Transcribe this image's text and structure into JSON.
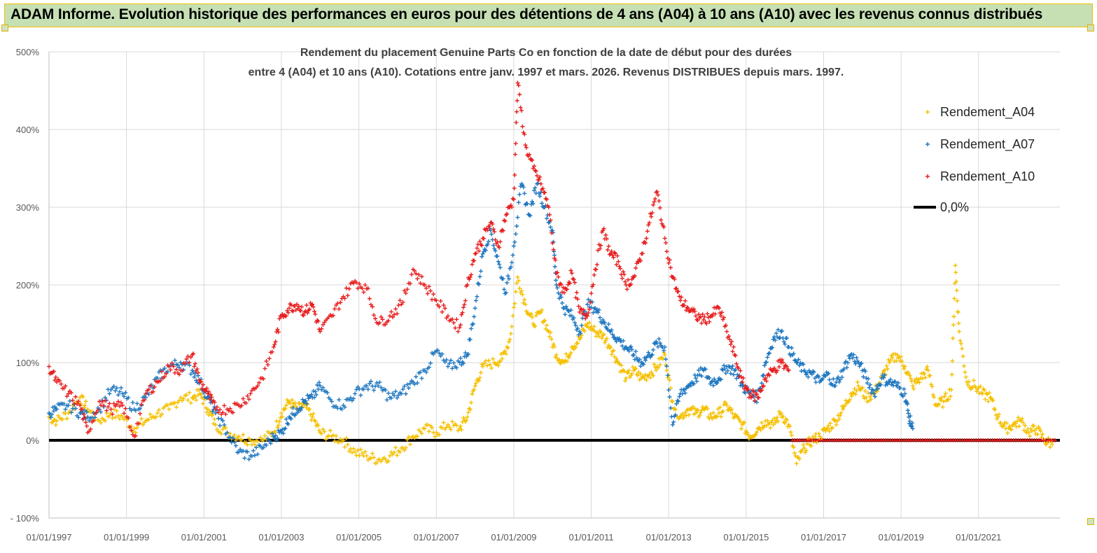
{
  "banner": {
    "title": "ADAM Informe. Evolution historique des performances en euros pour des détentions de 4 ans (A04) à 10 ans (A10) avec les revenus connus distribués"
  },
  "chart_data": {
    "type": "scatter",
    "title_line1": "Rendement du placement Genuine Parts Co en fonction de la date de début pour des durées",
    "title_line2": "entre 4 (A04) et 10 ans (A10). Cotations entre janv. 1997 et mars. 2026. Revenus DISTRIBUES depuis mars. 1997.",
    "y_ticks": [
      "500%",
      "400%",
      "300%",
      "200%",
      "100%",
      "0%",
      "- 100%"
    ],
    "x_ticks": [
      "01/01/1997",
      "01/01/1999",
      "01/01/2001",
      "01/01/2003",
      "01/01/2005",
      "01/01/2007",
      "01/01/2009",
      "01/01/2011",
      "01/01/2013",
      "01/01/2015",
      "01/01/2017",
      "01/01/2019",
      "01/01/2021"
    ],
    "ylim": [
      -100,
      500
    ],
    "xlim": [
      1997.0,
      2023.1
    ],
    "grid": true,
    "legend_position": "top-right",
    "reference_line": {
      "name": "0,0%",
      "value": 0,
      "color": "#000000"
    },
    "series": [
      {
        "name": "Rendement_A04",
        "color": "#f5c000",
        "points": [
          [
            1997.0,
            30
          ],
          [
            1997.2,
            25
          ],
          [
            1997.5,
            35
          ],
          [
            1997.8,
            55
          ],
          [
            1998.0,
            40
          ],
          [
            1998.3,
            25
          ],
          [
            1998.6,
            35
          ],
          [
            1998.9,
            30
          ],
          [
            1999.2,
            15
          ],
          [
            1999.5,
            25
          ],
          [
            1999.8,
            35
          ],
          [
            2000.1,
            40
          ],
          [
            2000.4,
            55
          ],
          [
            2000.7,
            55
          ],
          [
            2000.9,
            60
          ],
          [
            2001.1,
            40
          ],
          [
            2001.3,
            20
          ],
          [
            2001.6,
            10
          ],
          [
            2001.9,
            5
          ],
          [
            2002.2,
            0
          ],
          [
            2002.5,
            0
          ],
          [
            2002.8,
            10
          ],
          [
            2003.0,
            35
          ],
          [
            2003.2,
            50
          ],
          [
            2003.4,
            40
          ],
          [
            2003.6,
            45
          ],
          [
            2003.8,
            30
          ],
          [
            2004.0,
            10
          ],
          [
            2004.3,
            5
          ],
          [
            2004.6,
            0
          ],
          [
            2004.9,
            -15
          ],
          [
            2005.2,
            -20
          ],
          [
            2005.5,
            -25
          ],
          [
            2005.8,
            -20
          ],
          [
            2006.1,
            -10
          ],
          [
            2006.4,
            5
          ],
          [
            2006.7,
            15
          ],
          [
            2007.0,
            10
          ],
          [
            2007.3,
            20
          ],
          [
            2007.6,
            15
          ],
          [
            2007.8,
            30
          ],
          [
            2008.0,
            70
          ],
          [
            2008.2,
            95
          ],
          [
            2008.5,
            100
          ],
          [
            2008.7,
            105
          ],
          [
            2008.9,
            130
          ],
          [
            2009.1,
            210
          ],
          [
            2009.3,
            175
          ],
          [
            2009.5,
            150
          ],
          [
            2009.7,
            165
          ],
          [
            2009.9,
            140
          ],
          [
            2010.1,
            110
          ],
          [
            2010.3,
            100
          ],
          [
            2010.5,
            120
          ],
          [
            2010.7,
            130
          ],
          [
            2010.9,
            150
          ],
          [
            2011.1,
            140
          ],
          [
            2011.3,
            135
          ],
          [
            2011.5,
            120
          ],
          [
            2011.7,
            100
          ],
          [
            2011.9,
            80
          ],
          [
            2012.1,
            90
          ],
          [
            2012.3,
            80
          ],
          [
            2012.5,
            85
          ],
          [
            2012.7,
            95
          ],
          [
            2012.9,
            110
          ],
          [
            2013.1,
            50
          ],
          [
            2013.3,
            30
          ],
          [
            2013.5,
            40
          ],
          [
            2013.7,
            35
          ],
          [
            2013.9,
            40
          ],
          [
            2014.1,
            30
          ],
          [
            2014.3,
            35
          ],
          [
            2014.5,
            45
          ],
          [
            2014.7,
            30
          ],
          [
            2014.9,
            20
          ],
          [
            2015.1,
            5
          ],
          [
            2015.3,
            15
          ],
          [
            2015.5,
            25
          ],
          [
            2015.7,
            20
          ],
          [
            2015.9,
            35
          ],
          [
            2016.1,
            20
          ],
          [
            2016.3,
            -30
          ],
          [
            2016.5,
            -10
          ],
          [
            2016.7,
            0
          ],
          [
            2016.9,
            5
          ],
          [
            2017.1,
            15
          ],
          [
            2017.3,
            25
          ],
          [
            2017.5,
            40
          ],
          [
            2017.7,
            60
          ],
          [
            2017.9,
            70
          ],
          [
            2018.1,
            55
          ],
          [
            2018.3,
            60
          ],
          [
            2018.5,
            80
          ],
          [
            2018.7,
            100
          ],
          [
            2018.9,
            110
          ],
          [
            2019.1,
            95
          ],
          [
            2019.3,
            70
          ],
          [
            2019.5,
            80
          ],
          [
            2019.7,
            90
          ],
          [
            2019.9,
            45
          ],
          [
            2020.1,
            50
          ],
          [
            2020.3,
            65
          ],
          [
            2020.4,
            225
          ],
          [
            2020.5,
            140
          ],
          [
            2020.7,
            75
          ],
          [
            2020.9,
            70
          ],
          [
            2021.1,
            60
          ],
          [
            2021.3,
            55
          ],
          [
            2021.5,
            30
          ],
          [
            2021.7,
            15
          ],
          [
            2021.9,
            20
          ],
          [
            2022.1,
            25
          ],
          [
            2022.3,
            10
          ],
          [
            2022.5,
            15
          ],
          [
            2022.7,
            0
          ],
          [
            2022.9,
            -5
          ]
        ]
      },
      {
        "name": "Rendement_A07",
        "color": "#1f77c0",
        "points": [
          [
            1997.0,
            35
          ],
          [
            1997.2,
            40
          ],
          [
            1997.5,
            45
          ],
          [
            1997.8,
            35
          ],
          [
            1998.0,
            30
          ],
          [
            1998.3,
            40
          ],
          [
            1998.6,
            65
          ],
          [
            1998.9,
            60
          ],
          [
            1999.2,
            40
          ],
          [
            1999.5,
            55
          ],
          [
            1999.8,
            80
          ],
          [
            2000.1,
            95
          ],
          [
            2000.4,
            100
          ],
          [
            2000.7,
            90
          ],
          [
            2000.9,
            75
          ],
          [
            2001.1,
            55
          ],
          [
            2001.3,
            35
          ],
          [
            2001.6,
            10
          ],
          [
            2001.9,
            -15
          ],
          [
            2002.2,
            -20
          ],
          [
            2002.5,
            -10
          ],
          [
            2002.8,
            5
          ],
          [
            2003.0,
            10
          ],
          [
            2003.2,
            30
          ],
          [
            2003.4,
            40
          ],
          [
            2003.6,
            50
          ],
          [
            2003.8,
            55
          ],
          [
            2004.0,
            70
          ],
          [
            2004.3,
            50
          ],
          [
            2004.6,
            45
          ],
          [
            2004.9,
            60
          ],
          [
            2005.2,
            70
          ],
          [
            2005.5,
            70
          ],
          [
            2005.8,
            55
          ],
          [
            2006.1,
            60
          ],
          [
            2006.4,
            75
          ],
          [
            2006.7,
            90
          ],
          [
            2007.0,
            115
          ],
          [
            2007.3,
            95
          ],
          [
            2007.6,
            100
          ],
          [
            2007.8,
            110
          ],
          [
            2008.0,
            170
          ],
          [
            2008.2,
            240
          ],
          [
            2008.4,
            270
          ],
          [
            2008.6,
            230
          ],
          [
            2008.8,
            190
          ],
          [
            2009.0,
            250
          ],
          [
            2009.2,
            330
          ],
          [
            2009.4,
            290
          ],
          [
            2009.6,
            330
          ],
          [
            2009.8,
            300
          ],
          [
            2010.0,
            270
          ],
          [
            2010.1,
            200
          ],
          [
            2010.3,
            170
          ],
          [
            2010.5,
            160
          ],
          [
            2010.7,
            140
          ],
          [
            2010.9,
            175
          ],
          [
            2011.1,
            170
          ],
          [
            2011.3,
            155
          ],
          [
            2011.5,
            140
          ],
          [
            2011.7,
            130
          ],
          [
            2011.9,
            120
          ],
          [
            2012.1,
            110
          ],
          [
            2012.3,
            100
          ],
          [
            2012.5,
            110
          ],
          [
            2012.7,
            125
          ],
          [
            2012.9,
            120
          ],
          [
            2013.1,
            20
          ],
          [
            2013.3,
            60
          ],
          [
            2013.5,
            70
          ],
          [
            2013.7,
            80
          ],
          [
            2013.9,
            90
          ],
          [
            2014.1,
            75
          ],
          [
            2014.3,
            80
          ],
          [
            2014.5,
            95
          ],
          [
            2014.7,
            90
          ],
          [
            2014.9,
            70
          ],
          [
            2015.1,
            60
          ],
          [
            2015.3,
            55
          ],
          [
            2015.5,
            100
          ],
          [
            2015.7,
            130
          ],
          [
            2015.9,
            140
          ],
          [
            2016.1,
            120
          ],
          [
            2016.3,
            100
          ],
          [
            2016.5,
            90
          ],
          [
            2016.7,
            85
          ],
          [
            2016.9,
            75
          ],
          [
            2017.1,
            85
          ],
          [
            2017.3,
            70
          ],
          [
            2017.5,
            90
          ],
          [
            2017.7,
            110
          ],
          [
            2017.9,
            100
          ],
          [
            2018.1,
            80
          ],
          [
            2018.3,
            60
          ],
          [
            2018.5,
            80
          ],
          [
            2018.7,
            75
          ],
          [
            2018.9,
            70
          ],
          [
            2019.1,
            60
          ],
          [
            2019.2,
            30
          ],
          [
            2019.3,
            15
          ]
        ]
      },
      {
        "name": "Rendement_A10",
        "color": "#e81e1e",
        "points": [
          [
            1997.0,
            95
          ],
          [
            1997.2,
            75
          ],
          [
            1997.5,
            60
          ],
          [
            1997.8,
            45
          ],
          [
            1998.0,
            10
          ],
          [
            1998.3,
            50
          ],
          [
            1998.6,
            40
          ],
          [
            1998.9,
            45
          ],
          [
            1999.2,
            5
          ],
          [
            1999.5,
            60
          ],
          [
            1999.8,
            75
          ],
          [
            2000.1,
            95
          ],
          [
            2000.4,
            90
          ],
          [
            2000.7,
            110
          ],
          [
            2000.9,
            75
          ],
          [
            2001.1,
            60
          ],
          [
            2001.3,
            40
          ],
          [
            2001.6,
            40
          ],
          [
            2001.9,
            45
          ],
          [
            2002.2,
            60
          ],
          [
            2002.5,
            80
          ],
          [
            2002.8,
            120
          ],
          [
            2003.0,
            160
          ],
          [
            2003.2,
            170
          ],
          [
            2003.4,
            175
          ],
          [
            2003.6,
            165
          ],
          [
            2003.8,
            175
          ],
          [
            2004.0,
            140
          ],
          [
            2004.3,
            160
          ],
          [
            2004.6,
            185
          ],
          [
            2004.9,
            205
          ],
          [
            2005.2,
            195
          ],
          [
            2005.5,
            150
          ],
          [
            2005.8,
            160
          ],
          [
            2006.1,
            175
          ],
          [
            2006.4,
            220
          ],
          [
            2006.7,
            200
          ],
          [
            2007.0,
            180
          ],
          [
            2007.3,
            160
          ],
          [
            2007.6,
            145
          ],
          [
            2007.8,
            200
          ],
          [
            2008.0,
            240
          ],
          [
            2008.2,
            260
          ],
          [
            2008.4,
            280
          ],
          [
            2008.6,
            250
          ],
          [
            2008.8,
            290
          ],
          [
            2009.0,
            310
          ],
          [
            2009.1,
            460
          ],
          [
            2009.3,
            380
          ],
          [
            2009.5,
            350
          ],
          [
            2009.7,
            330
          ],
          [
            2009.9,
            300
          ],
          [
            2010.1,
            215
          ],
          [
            2010.3,
            190
          ],
          [
            2010.5,
            215
          ],
          [
            2010.7,
            165
          ],
          [
            2010.9,
            160
          ],
          [
            2011.1,
            220
          ],
          [
            2011.3,
            270
          ],
          [
            2011.5,
            240
          ],
          [
            2011.7,
            230
          ],
          [
            2011.9,
            200
          ],
          [
            2012.1,
            210
          ],
          [
            2012.3,
            240
          ],
          [
            2012.5,
            280
          ],
          [
            2012.7,
            320
          ],
          [
            2012.9,
            260
          ],
          [
            2013.1,
            210
          ],
          [
            2013.3,
            180
          ],
          [
            2013.5,
            170
          ],
          [
            2013.7,
            160
          ],
          [
            2013.9,
            155
          ],
          [
            2014.1,
            160
          ],
          [
            2014.3,
            170
          ],
          [
            2014.5,
            140
          ],
          [
            2014.7,
            110
          ],
          [
            2014.9,
            75
          ],
          [
            2015.1,
            60
          ],
          [
            2015.3,
            55
          ],
          [
            2015.5,
            80
          ],
          [
            2015.7,
            90
          ],
          [
            2015.9,
            100
          ],
          [
            2016.1,
            90
          ]
        ]
      }
    ]
  }
}
